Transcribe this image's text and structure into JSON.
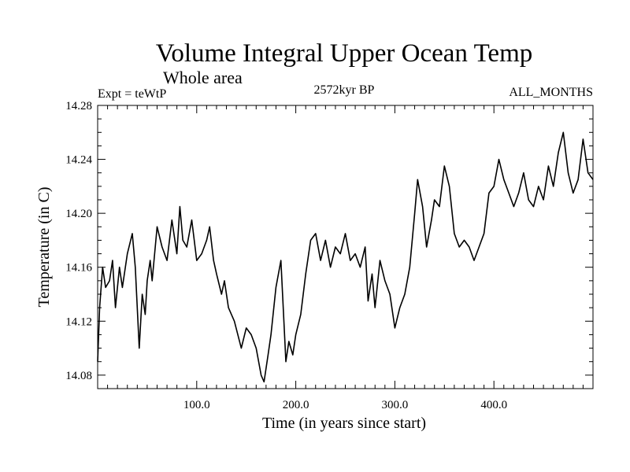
{
  "chart_data": {
    "type": "line",
    "title": "Volume Integral Upper Ocean Temp",
    "subtitle": "Whole area",
    "header_left": "Expt = teWtP",
    "header_center": "2572kyr BP",
    "header_right": "ALL_MONTHS",
    "xlabel": "Time (in years since start)",
    "ylabel": "Temperature (in C)",
    "xlim": [
      0,
      500
    ],
    "ylim": [
      14.07,
      14.28
    ],
    "x_tick_values": [
      100,
      200,
      300,
      400
    ],
    "x_tick_labels": [
      "100.0",
      "200.0",
      "300.0",
      "400.0"
    ],
    "y_tick_values": [
      14.08,
      14.12,
      14.16,
      14.2,
      14.24,
      14.28
    ],
    "y_tick_labels": [
      "14.08",
      "14.12",
      "14.16",
      "14.20",
      "14.24",
      "14.28"
    ],
    "grid": false,
    "series": [
      {
        "name": "Volume Integral Upper Ocean Temp",
        "color": "#000000",
        "x": [
          0,
          2,
          5,
          8,
          12,
          15,
          18,
          22,
          25,
          30,
          35,
          38,
          42,
          45,
          48,
          50,
          53,
          55,
          60,
          65,
          70,
          75,
          80,
          83,
          86,
          90,
          95,
          100,
          105,
          110,
          113,
          117,
          120,
          125,
          128,
          132,
          138,
          145,
          150,
          155,
          160,
          165,
          168,
          172,
          175,
          180,
          185,
          188,
          190,
          193,
          197,
          200,
          205,
          210,
          215,
          220,
          225,
          230,
          235,
          240,
          245,
          250,
          255,
          260,
          265,
          270,
          273,
          277,
          280,
          285,
          290,
          295,
          300,
          305,
          310,
          315,
          320,
          323,
          328,
          332,
          337,
          340,
          345,
          350,
          355,
          360,
          365,
          370,
          375,
          380,
          385,
          390,
          395,
          400,
          405,
          410,
          415,
          420,
          425,
          430,
          435,
          440,
          445,
          450,
          455,
          460,
          465,
          470,
          475,
          480,
          485,
          490,
          495,
          500
        ],
        "values": [
          14.09,
          14.13,
          14.16,
          14.145,
          14.15,
          14.165,
          14.13,
          14.16,
          14.145,
          14.17,
          14.185,
          14.16,
          14.1,
          14.14,
          14.125,
          14.15,
          14.165,
          14.15,
          14.19,
          14.175,
          14.165,
          14.195,
          14.17,
          14.205,
          14.18,
          14.175,
          14.195,
          14.165,
          14.17,
          14.18,
          14.19,
          14.165,
          14.155,
          14.14,
          14.15,
          14.13,
          14.12,
          14.1,
          14.115,
          14.11,
          14.1,
          14.08,
          14.075,
          14.095,
          14.11,
          14.145,
          14.165,
          14.12,
          14.09,
          14.105,
          14.095,
          14.11,
          14.125,
          14.155,
          14.18,
          14.185,
          14.165,
          14.18,
          14.16,
          14.175,
          14.17,
          14.185,
          14.165,
          14.17,
          14.16,
          14.175,
          14.135,
          14.155,
          14.13,
          14.165,
          14.15,
          14.14,
          14.115,
          14.13,
          14.14,
          14.16,
          14.2,
          14.225,
          14.205,
          14.175,
          14.195,
          14.21,
          14.205,
          14.235,
          14.22,
          14.185,
          14.175,
          14.18,
          14.175,
          14.165,
          14.175,
          14.185,
          14.215,
          14.22,
          14.24,
          14.225,
          14.215,
          14.205,
          14.215,
          14.23,
          14.21,
          14.205,
          14.22,
          14.21,
          14.235,
          14.22,
          14.245,
          14.26,
          14.23,
          14.215,
          14.225,
          14.255,
          14.23,
          14.225
        ]
      }
    ]
  }
}
